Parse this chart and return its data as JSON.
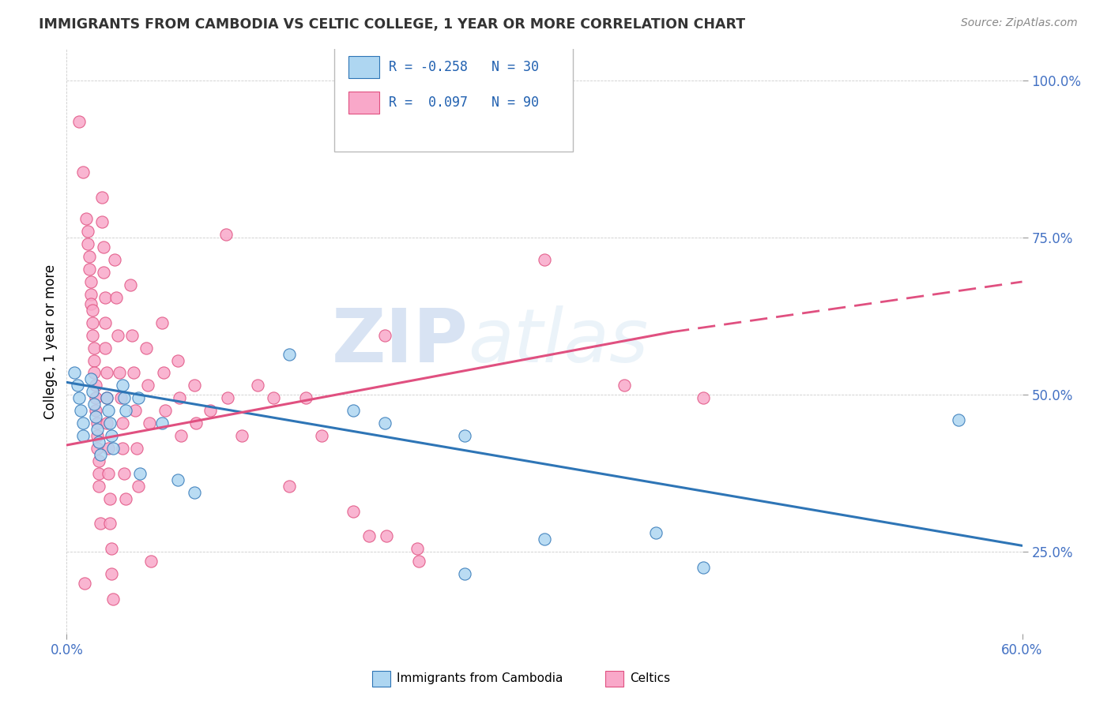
{
  "title": "IMMIGRANTS FROM CAMBODIA VS CELTIC COLLEGE, 1 YEAR OR MORE CORRELATION CHART",
  "source_text": "Source: ZipAtlas.com",
  "ylabel": "College, 1 year or more",
  "xlim": [
    0.0,
    0.6
  ],
  "ylim": [
    0.12,
    1.05
  ],
  "ytick_labels": [
    "25.0%",
    "50.0%",
    "75.0%",
    "100.0%"
  ],
  "ytick_values": [
    0.25,
    0.5,
    0.75,
    1.0
  ],
  "color_blue": "#aed6f1",
  "color_pink": "#f9a8c9",
  "line_blue": "#2e75b6",
  "line_pink": "#e05080",
  "watermark_zip": "ZIP",
  "watermark_atlas": "atlas",
  "scatter_blue": [
    [
      0.005,
      0.535
    ],
    [
      0.007,
      0.515
    ],
    [
      0.008,
      0.495
    ],
    [
      0.009,
      0.475
    ],
    [
      0.01,
      0.455
    ],
    [
      0.01,
      0.435
    ],
    [
      0.015,
      0.525
    ],
    [
      0.016,
      0.505
    ],
    [
      0.017,
      0.485
    ],
    [
      0.018,
      0.465
    ],
    [
      0.019,
      0.445
    ],
    [
      0.02,
      0.425
    ],
    [
      0.021,
      0.405
    ],
    [
      0.025,
      0.495
    ],
    [
      0.026,
      0.475
    ],
    [
      0.027,
      0.455
    ],
    [
      0.028,
      0.435
    ],
    [
      0.029,
      0.415
    ],
    [
      0.035,
      0.515
    ],
    [
      0.036,
      0.495
    ],
    [
      0.037,
      0.475
    ],
    [
      0.045,
      0.495
    ],
    [
      0.046,
      0.375
    ],
    [
      0.06,
      0.455
    ],
    [
      0.07,
      0.365
    ],
    [
      0.08,
      0.345
    ],
    [
      0.14,
      0.565
    ],
    [
      0.18,
      0.475
    ],
    [
      0.37,
      0.28
    ],
    [
      0.56,
      0.46
    ],
    [
      0.2,
      0.455
    ],
    [
      0.25,
      0.435
    ],
    [
      0.25,
      0.215
    ],
    [
      0.4,
      0.225
    ],
    [
      0.3,
      0.27
    ]
  ],
  "scatter_pink": [
    [
      0.008,
      0.935
    ],
    [
      0.01,
      0.855
    ],
    [
      0.011,
      0.2
    ],
    [
      0.012,
      0.78
    ],
    [
      0.013,
      0.76
    ],
    [
      0.013,
      0.74
    ],
    [
      0.014,
      0.72
    ],
    [
      0.014,
      0.7
    ],
    [
      0.015,
      0.68
    ],
    [
      0.015,
      0.66
    ],
    [
      0.015,
      0.645
    ],
    [
      0.016,
      0.635
    ],
    [
      0.016,
      0.615
    ],
    [
      0.016,
      0.595
    ],
    [
      0.017,
      0.575
    ],
    [
      0.017,
      0.555
    ],
    [
      0.017,
      0.535
    ],
    [
      0.018,
      0.515
    ],
    [
      0.018,
      0.495
    ],
    [
      0.018,
      0.475
    ],
    [
      0.019,
      0.455
    ],
    [
      0.019,
      0.435
    ],
    [
      0.019,
      0.415
    ],
    [
      0.02,
      0.395
    ],
    [
      0.02,
      0.375
    ],
    [
      0.02,
      0.355
    ],
    [
      0.021,
      0.295
    ],
    [
      0.022,
      0.815
    ],
    [
      0.022,
      0.775
    ],
    [
      0.023,
      0.735
    ],
    [
      0.023,
      0.695
    ],
    [
      0.024,
      0.655
    ],
    [
      0.024,
      0.615
    ],
    [
      0.024,
      0.575
    ],
    [
      0.025,
      0.535
    ],
    [
      0.025,
      0.495
    ],
    [
      0.025,
      0.455
    ],
    [
      0.026,
      0.415
    ],
    [
      0.026,
      0.375
    ],
    [
      0.027,
      0.335
    ],
    [
      0.027,
      0.295
    ],
    [
      0.028,
      0.255
    ],
    [
      0.028,
      0.215
    ],
    [
      0.029,
      0.175
    ],
    [
      0.03,
      0.715
    ],
    [
      0.031,
      0.655
    ],
    [
      0.032,
      0.595
    ],
    [
      0.033,
      0.535
    ],
    [
      0.034,
      0.495
    ],
    [
      0.035,
      0.455
    ],
    [
      0.035,
      0.415
    ],
    [
      0.036,
      0.375
    ],
    [
      0.037,
      0.335
    ],
    [
      0.04,
      0.675
    ],
    [
      0.041,
      0.595
    ],
    [
      0.042,
      0.535
    ],
    [
      0.043,
      0.475
    ],
    [
      0.044,
      0.415
    ],
    [
      0.045,
      0.355
    ],
    [
      0.05,
      0.575
    ],
    [
      0.051,
      0.515
    ],
    [
      0.052,
      0.455
    ],
    [
      0.053,
      0.235
    ],
    [
      0.06,
      0.615
    ],
    [
      0.061,
      0.535
    ],
    [
      0.062,
      0.475
    ],
    [
      0.07,
      0.555
    ],
    [
      0.071,
      0.495
    ],
    [
      0.072,
      0.435
    ],
    [
      0.08,
      0.515
    ],
    [
      0.081,
      0.455
    ],
    [
      0.09,
      0.475
    ],
    [
      0.1,
      0.755
    ],
    [
      0.101,
      0.495
    ],
    [
      0.11,
      0.435
    ],
    [
      0.12,
      0.515
    ],
    [
      0.13,
      0.495
    ],
    [
      0.14,
      0.355
    ],
    [
      0.15,
      0.495
    ],
    [
      0.16,
      0.435
    ],
    [
      0.18,
      0.315
    ],
    [
      0.19,
      0.275
    ],
    [
      0.2,
      0.595
    ],
    [
      0.201,
      0.275
    ],
    [
      0.22,
      0.255
    ],
    [
      0.221,
      0.235
    ],
    [
      0.3,
      0.715
    ],
    [
      0.35,
      0.515
    ],
    [
      0.4,
      0.495
    ]
  ],
  "blue_trend": [
    0.0,
    0.6,
    0.52,
    0.26
  ],
  "pink_trend_solid": [
    0.0,
    0.38,
    0.42,
    0.6
  ],
  "pink_trend_dashed": [
    0.38,
    0.6,
    0.6,
    0.68
  ]
}
